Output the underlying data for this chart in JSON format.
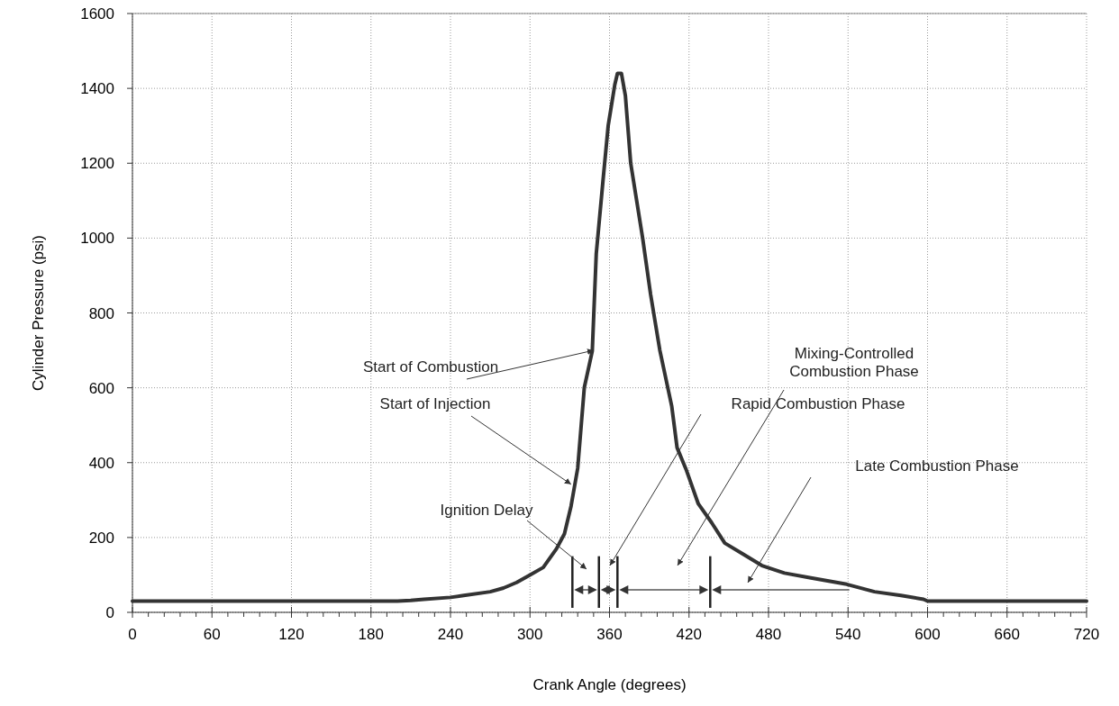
{
  "chart_data": {
    "type": "line",
    "xlabel": "Crank Angle (degrees)",
    "ylabel": "Cylinder Pressure (psi)",
    "x": [
      0,
      60,
      120,
      180,
      200,
      210,
      220,
      240,
      250,
      270,
      280,
      290,
      300,
      310,
      320,
      326,
      331,
      336,
      341,
      347,
      350,
      355,
      359,
      364,
      366,
      369,
      372,
      376,
      385,
      391,
      398,
      407,
      411,
      418,
      427,
      437,
      447,
      461,
      475,
      492,
      512,
      539,
      560,
      580,
      597,
      600,
      660,
      720
    ],
    "series": [
      {
        "color": "#333333",
        "values": [
          30,
          30,
          30,
          30,
          30,
          32,
          35,
          40,
          45,
          55,
          65,
          80,
          100,
          120,
          170,
          210,
          284,
          385,
          601,
          698,
          958,
          1150,
          1300,
          1410,
          1440,
          1440,
          1380,
          1200,
          1000,
          850,
          700,
          550,
          440,
          380,
          290,
          240,
          185,
          155,
          125,
          105,
          92,
          75,
          55,
          45,
          35,
          30,
          30,
          30
        ]
      }
    ],
    "xlim": [
      0,
      720
    ],
    "xticks": [
      0,
      60,
      120,
      180,
      240,
      300,
      360,
      420,
      480,
      540,
      600,
      660,
      720
    ],
    "ylim": [
      0,
      1600
    ],
    "yticks": [
      0,
      200,
      400,
      600,
      800,
      1000,
      1200,
      1400,
      1600
    ],
    "grid": true,
    "marker": "none",
    "line_style": "solid",
    "ref_lines": [
      {
        "axis": "x",
        "value": 332,
        "color": "#222222"
      },
      {
        "axis": "x",
        "value": 352,
        "color": "#222222"
      },
      {
        "axis": "x",
        "value": 366,
        "color": "#222222"
      },
      {
        "axis": "x",
        "value": 436,
        "color": "#222222"
      }
    ],
    "annotations": [
      {
        "text": "Start of Combustion",
        "x": 348,
        "y": 700
      },
      {
        "text": "Start of Injection",
        "x": 331,
        "y": 342
      },
      "Ignition Delay",
      "Rapid Combustion Phase",
      "Mixing-Controlled\nCombustion Phase",
      "Late Combustion Phase"
    ]
  }
}
